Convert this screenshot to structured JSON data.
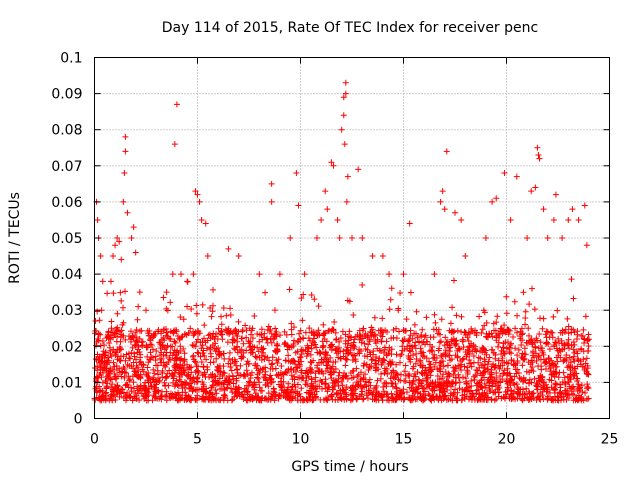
{
  "chart_data": {
    "type": "scatter",
    "title": "Day 114 of 2015, Rate Of TEC Index for receiver penc",
    "xlabel": "GPS time / hours",
    "ylabel": "ROTI / TECUs",
    "xlim": [
      0,
      25
    ],
    "ylim": [
      0,
      0.1
    ],
    "x_ticks": [
      0,
      5,
      10,
      15,
      20,
      25
    ],
    "x_tick_labels": [
      "0",
      "5",
      "10",
      "15",
      "20",
      "25"
    ],
    "y_ticks": [
      0,
      0.01,
      0.02,
      0.03,
      0.04,
      0.05,
      0.06,
      0.07,
      0.08,
      0.09,
      0.1
    ],
    "y_tick_labels": [
      "0",
      "0.01",
      "0.02",
      "0.03",
      "0.04",
      "0.05",
      "0.06",
      "0.07",
      "0.08",
      "0.09",
      "0.1"
    ],
    "grid": true,
    "legend": false,
    "marker": "plus",
    "color": "#ff0000",
    "x_data_range": [
      0,
      24
    ],
    "typical_band": [
      0.005,
      0.025
    ],
    "points": [
      [
        0.05,
        0.027
      ],
      [
        0.1,
        0.06
      ],
      [
        0.15,
        0.055
      ],
      [
        0.2,
        0.05
      ],
      [
        0.3,
        0.045
      ],
      [
        0.4,
        0.038
      ],
      [
        0.8,
        0.038
      ],
      [
        0.9,
        0.045
      ],
      [
        1.0,
        0.048
      ],
      [
        1.1,
        0.05
      ],
      [
        1.2,
        0.049
      ],
      [
        1.3,
        0.044
      ],
      [
        1.4,
        0.06
      ],
      [
        1.45,
        0.068
      ],
      [
        1.5,
        0.074
      ],
      [
        1.5,
        0.078
      ],
      [
        1.6,
        0.057
      ],
      [
        1.8,
        0.05
      ],
      [
        1.9,
        0.053
      ],
      [
        2.0,
        0.046
      ],
      [
        2.2,
        0.035
      ],
      [
        2.5,
        0.03
      ],
      [
        3.5,
        0.035
      ],
      [
        3.8,
        0.04
      ],
      [
        3.9,
        0.076
      ],
      [
        4.0,
        0.087
      ],
      [
        4.2,
        0.04
      ],
      [
        4.5,
        0.038
      ],
      [
        4.8,
        0.04
      ],
      [
        4.9,
        0.063
      ],
      [
        5.0,
        0.062
      ],
      [
        5.1,
        0.06
      ],
      [
        5.2,
        0.055
      ],
      [
        5.4,
        0.054
      ],
      [
        5.5,
        0.045
      ],
      [
        6.5,
        0.047
      ],
      [
        7.0,
        0.045
      ],
      [
        8.0,
        0.04
      ],
      [
        8.6,
        0.065
      ],
      [
        8.6,
        0.06
      ],
      [
        9.0,
        0.04
      ],
      [
        9.5,
        0.05
      ],
      [
        9.8,
        0.068
      ],
      [
        9.9,
        0.059
      ],
      [
        10.2,
        0.04
      ],
      [
        10.8,
        0.05
      ],
      [
        11.0,
        0.055
      ],
      [
        11.2,
        0.063
      ],
      [
        11.3,
        0.058
      ],
      [
        11.5,
        0.071
      ],
      [
        11.6,
        0.07
      ],
      [
        11.8,
        0.055
      ],
      [
        11.9,
        0.05
      ],
      [
        12.0,
        0.08
      ],
      [
        12.1,
        0.084
      ],
      [
        12.1,
        0.089
      ],
      [
        12.2,
        0.093
      ],
      [
        12.2,
        0.09
      ],
      [
        12.15,
        0.076
      ],
      [
        12.25,
        0.06
      ],
      [
        12.3,
        0.067
      ],
      [
        12.5,
        0.05
      ],
      [
        12.8,
        0.069
      ],
      [
        13.0,
        0.05
      ],
      [
        13.5,
        0.045
      ],
      [
        14.0,
        0.045
      ],
      [
        14.3,
        0.04
      ],
      [
        15.0,
        0.04
      ],
      [
        15.3,
        0.054
      ],
      [
        16.5,
        0.04
      ],
      [
        16.8,
        0.06
      ],
      [
        16.9,
        0.063
      ],
      [
        17.0,
        0.058
      ],
      [
        17.1,
        0.074
      ],
      [
        17.5,
        0.057
      ],
      [
        17.8,
        0.055
      ],
      [
        18.0,
        0.045
      ],
      [
        19.0,
        0.05
      ],
      [
        19.3,
        0.06
      ],
      [
        19.5,
        0.061
      ],
      [
        19.9,
        0.068
      ],
      [
        20.2,
        0.055
      ],
      [
        20.5,
        0.067
      ],
      [
        21.0,
        0.05
      ],
      [
        21.2,
        0.063
      ],
      [
        21.4,
        0.064
      ],
      [
        21.5,
        0.075
      ],
      [
        21.55,
        0.073
      ],
      [
        21.6,
        0.072
      ],
      [
        21.8,
        0.058
      ],
      [
        22.0,
        0.05
      ],
      [
        22.3,
        0.055
      ],
      [
        22.4,
        0.062
      ],
      [
        22.7,
        0.05
      ],
      [
        23.0,
        0.055
      ],
      [
        23.2,
        0.058
      ],
      [
        23.5,
        0.055
      ],
      [
        23.8,
        0.059
      ],
      [
        23.9,
        0.048
      ]
    ]
  }
}
